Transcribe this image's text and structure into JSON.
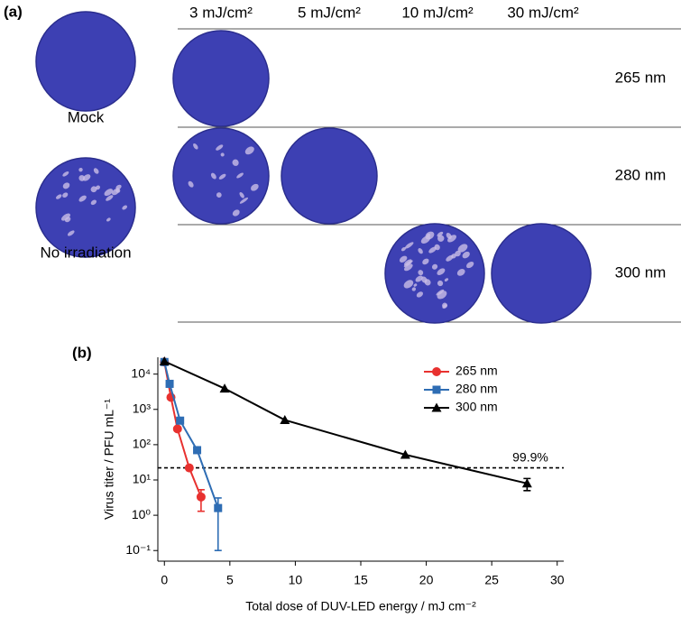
{
  "panel_a": {
    "label": "(a)",
    "columns": [
      "3 mJ/cm²",
      "5 mJ/cm²",
      "10 mJ/cm²",
      "30 mJ/cm²"
    ],
    "rows": [
      "265 nm",
      "280 nm",
      "300 nm"
    ],
    "controls": [
      "Mock",
      "No irradiation"
    ]
  },
  "chart_data": {
    "type": "line",
    "panel_label": "(b)",
    "x_label": "Total dose of DUV-LED energy / mJ cm⁻²",
    "y_label": "Virus titer / PFU mL⁻¹",
    "xlim": [
      -0.5,
      30.5
    ],
    "xticks": [
      0,
      5,
      10,
      15,
      20,
      25,
      30
    ],
    "ylim": [
      0.05,
      30000
    ],
    "log_y": true,
    "yticks": [
      {
        "value": 0.1,
        "label": "10⁻¹"
      },
      {
        "value": 1,
        "label": "10⁰"
      },
      {
        "value": 10,
        "label": "10¹"
      },
      {
        "value": 100,
        "label": "10²"
      },
      {
        "value": 1000,
        "label": "10³"
      },
      {
        "value": 10000,
        "label": "10⁴"
      }
    ],
    "legend": "upper right",
    "threshold": {
      "value": 22,
      "label": "99.9%"
    },
    "series": [
      {
        "name": "265 nm",
        "color": "#e8312f",
        "marker": "circle",
        "x": [
          0,
          0.5,
          1,
          1.9,
          2.8
        ],
        "values": [
          22000,
          2200,
          280,
          22,
          3.3
        ],
        "errors": [
          null,
          null,
          null,
          null,
          2
        ]
      },
      {
        "name": "280 nm",
        "color": "#2e6db4",
        "marker": "square",
        "x": [
          0,
          0.4,
          1.2,
          2.5,
          4.1
        ],
        "values": [
          22000,
          5300,
          480,
          70,
          1.6
        ],
        "errors": [
          null,
          null,
          null,
          null,
          1.5
        ]
      },
      {
        "name": "300 nm",
        "color": "#000000",
        "marker": "triangle",
        "x": [
          0,
          4.6,
          9.2,
          18.4,
          27.7
        ],
        "values": [
          23000,
          3900,
          500,
          52,
          8
        ],
        "errors": [
          null,
          null,
          null,
          null,
          3
        ]
      }
    ]
  }
}
